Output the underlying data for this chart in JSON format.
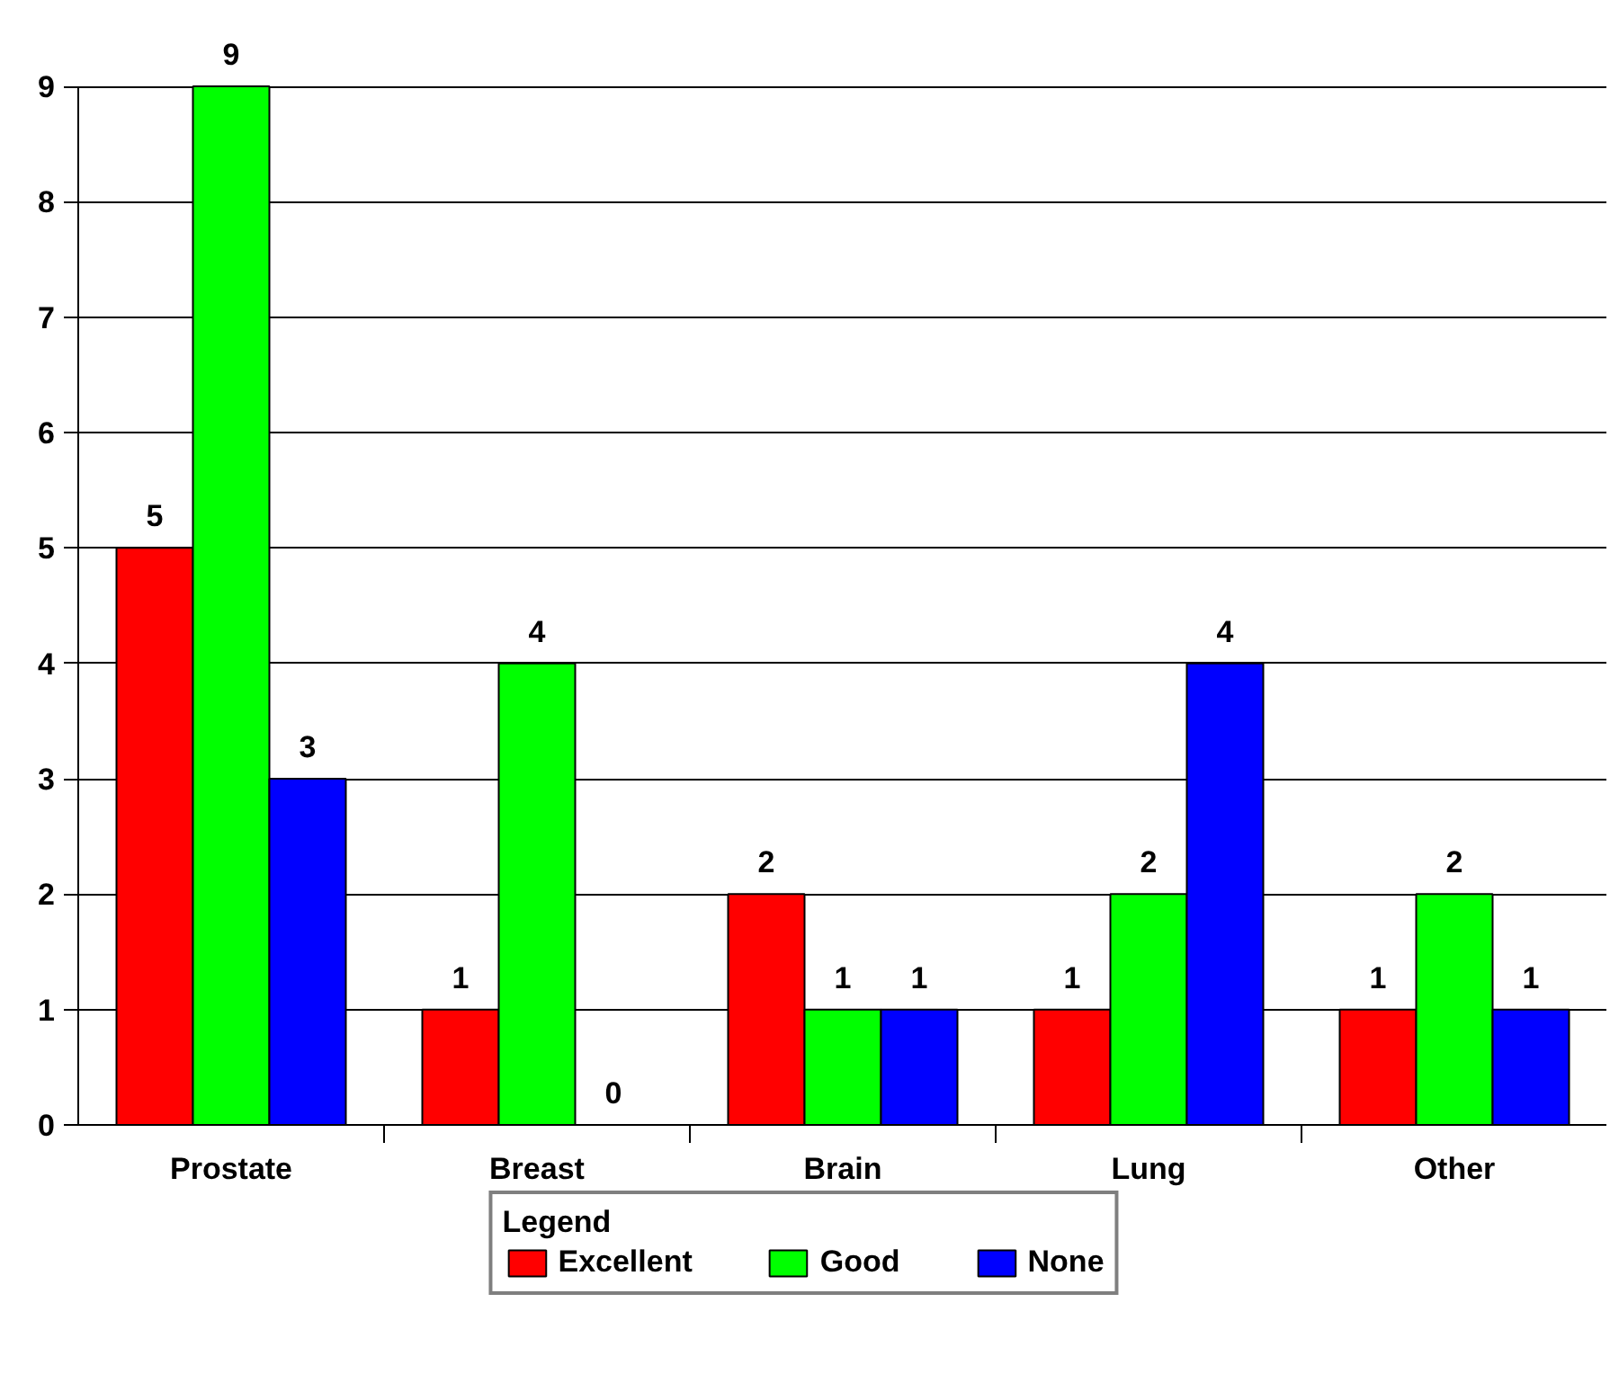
{
  "chart_data": {
    "type": "bar",
    "categories": [
      "Prostate",
      "Breast",
      "Brain",
      "Lung",
      "Other"
    ],
    "series": [
      {
        "name": "Excellent",
        "color": "#ff0000",
        "values": [
          5,
          1,
          2,
          1,
          1
        ]
      },
      {
        "name": "Good",
        "color": "#00ff00",
        "values": [
          9,
          4,
          1,
          2,
          2
        ]
      },
      {
        "name": "None",
        "color": "#0000ff",
        "values": [
          3,
          0,
          1,
          4,
          1
        ]
      }
    ],
    "ylim": [
      0,
      9
    ],
    "yticks": [
      0,
      1,
      2,
      3,
      4,
      5,
      6,
      7,
      8,
      9
    ],
    "grid": "y",
    "legend": "bottom",
    "legend_title": "Legend",
    "data_labels": true
  }
}
